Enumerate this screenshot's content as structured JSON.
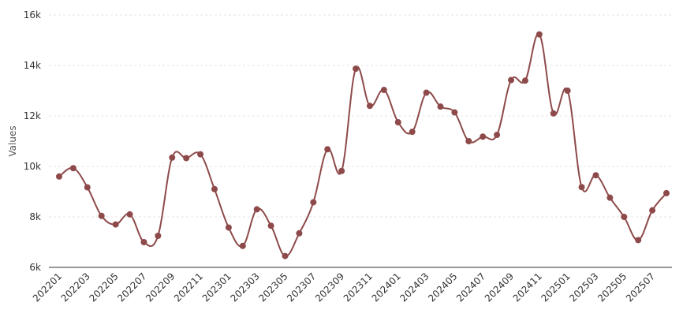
{
  "chart_data": {
    "type": "line",
    "ylabel": "Values",
    "ylim": [
      6000,
      16000
    ],
    "yticks": [
      {
        "value": 6000,
        "label": "6k"
      },
      {
        "value": 8000,
        "label": "8k"
      },
      {
        "value": 10000,
        "label": "10k"
      },
      {
        "value": 12000,
        "label": "12k"
      },
      {
        "value": 14000,
        "label": "14k"
      },
      {
        "value": 16000,
        "label": "16k"
      }
    ],
    "grid": true,
    "line_color": "#8e4a4a",
    "categories": [
      "202201",
      "202202",
      "202203",
      "202204",
      "202205",
      "202206",
      "202207",
      "202208",
      "202209",
      "202210",
      "202211",
      "202212",
      "202301",
      "202302",
      "202303",
      "202304",
      "202305",
      "202306",
      "202307",
      "202308",
      "202309",
      "202310",
      "202311",
      "202312",
      "202401",
      "202402",
      "202403",
      "202404",
      "202405",
      "202406",
      "202407",
      "202408",
      "202409",
      "202410",
      "202411",
      "202412",
      "202501",
      "202502",
      "202503",
      "202504",
      "202505",
      "202506",
      "202507",
      "202508"
    ],
    "xtick_labels": [
      "202201",
      "202203",
      "202205",
      "202207",
      "202209",
      "202211",
      "202301",
      "202303",
      "202305",
      "202307",
      "202309",
      "202311",
      "202401",
      "202403",
      "202405",
      "202407",
      "202409",
      "202411",
      "202501",
      "202503",
      "202505",
      "202507"
    ],
    "series": [
      {
        "values": [
          9600,
          9930,
          9170,
          8040,
          7700,
          8100,
          7000,
          7250,
          10350,
          10330,
          10480,
          9100,
          7580,
          6850,
          8300,
          7650,
          6450,
          7350,
          8580,
          10680,
          9820,
          13870,
          12400,
          13030,
          11750,
          11370,
          12920,
          12370,
          12140,
          11000,
          11180,
          11250,
          13420,
          13400,
          15230,
          12100,
          13000,
          9180,
          9650,
          8760,
          8000,
          7080,
          8260,
          8940
        ]
      }
    ]
  }
}
